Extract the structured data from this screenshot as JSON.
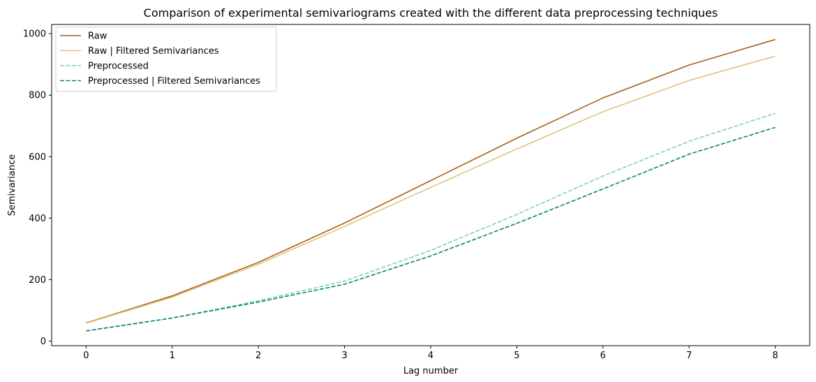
{
  "chart_data": {
    "type": "line",
    "title": "Comparison of experimental semivariograms created with the different data preprocessing techniques",
    "xlabel": "Lag number",
    "ylabel": "Semivariance",
    "x": [
      0,
      1,
      2,
      3,
      4,
      5,
      6,
      7,
      8
    ],
    "xlim": [
      -0.4,
      8.4
    ],
    "ylim": [
      -15,
      1030
    ],
    "xticks": [
      "0",
      "1",
      "2",
      "3",
      "4",
      "5",
      "6",
      "7",
      "8"
    ],
    "yticks": [
      "0",
      "200",
      "400",
      "600",
      "800",
      "1000"
    ],
    "grid": false,
    "legend_position": "top-left",
    "series": [
      {
        "name": "Raw",
        "color": "#a6611a",
        "dash": "solid",
        "values": [
          59,
          147,
          256,
          384,
          522,
          660,
          791,
          898,
          981
        ]
      },
      {
        "name": "Raw | Filtered Semivariances",
        "color": "#dfc27d",
        "dash": "solid",
        "values": [
          58,
          143,
          250,
          373,
          500,
          625,
          746,
          848,
          927
        ]
      },
      {
        "name": "Preprocessed",
        "color": "#80cdc1",
        "dash": "dashed",
        "values": [
          33,
          75,
          131,
          195,
          295,
          412,
          537,
          650,
          741
        ]
      },
      {
        "name": "Preprocessed | Filtered Semivariances",
        "color": "#018571",
        "dash": "dashed",
        "values": [
          33,
          75,
          127,
          185,
          277,
          383,
          495,
          608,
          695
        ]
      }
    ]
  }
}
